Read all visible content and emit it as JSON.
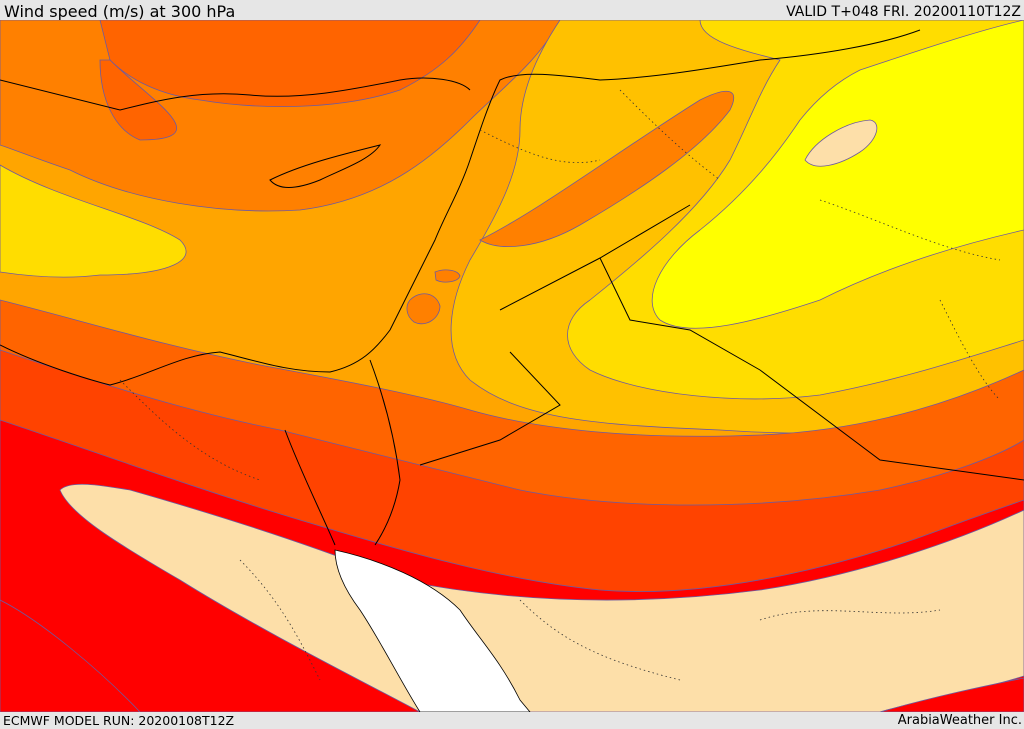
{
  "header": {
    "title": "Wind speed (m/s) at 300 hPa",
    "valid": "VALID T+048 FRI. 20200110T12Z"
  },
  "footer": {
    "model_run": "ECMWF MODEL RUN: 20200108T12Z",
    "credit": "ArabiaWeather Inc."
  },
  "colors": {
    "band_lightest": "#fddfa9",
    "band_yellow": "#ffff00",
    "band_gold": "#ffdd00",
    "band_amber": "#ffc100",
    "band_orange_light": "#ffa500",
    "band_orange": "#ff8000",
    "band_orange_dark": "#ff6400",
    "band_red_orange": "#ff4300",
    "band_red": "#ff0000",
    "no_data": "#ffffff",
    "coast": "#000000",
    "contour": "#6e5aa0"
  }
}
